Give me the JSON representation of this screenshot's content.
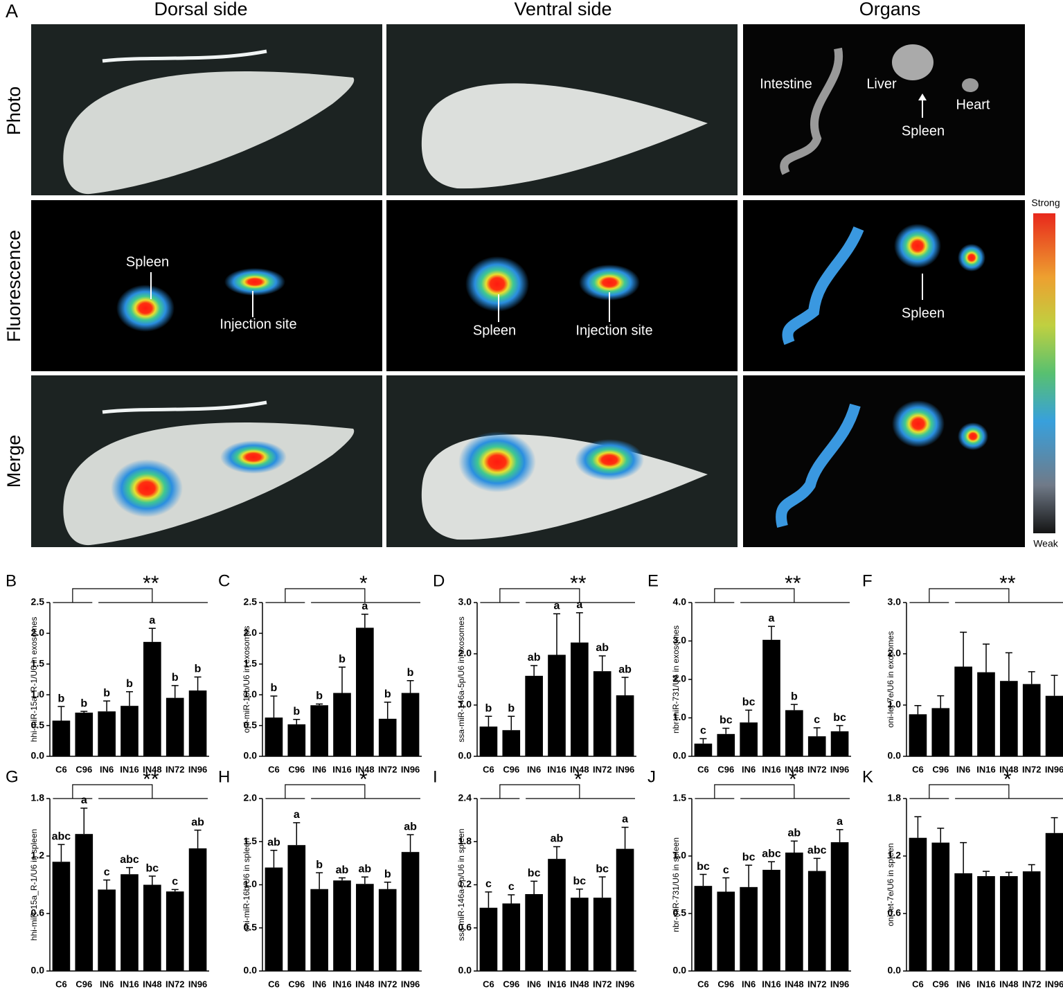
{
  "panel_a": {
    "label": "A",
    "columns": [
      "Dorsal side",
      "Ventral side",
      "Organs"
    ],
    "rows": [
      "Photo",
      "Fluorescence",
      "Merge"
    ],
    "annotations": [
      "Intestine",
      "Liver",
      "Heart",
      "Spleen",
      "Spleen",
      "Injection site",
      "Spleen",
      "Injection site",
      "Spleen"
    ],
    "colorbar": {
      "top": "Strong",
      "bottom": "Weak"
    }
  },
  "chart_data": [
    {
      "type": "bar",
      "panel": "B",
      "ylabel": "hhi-miR-15a_R-1/U6 in exosomes",
      "significance": "**",
      "color": "#000000",
      "categories": [
        "C6",
        "C96",
        "IN6",
        "IN16",
        "IN48",
        "IN72",
        "IN96"
      ],
      "values": [
        0.58,
        0.71,
        0.73,
        0.82,
        1.86,
        0.95,
        1.07
      ],
      "errors": [
        0.23,
        0.02,
        0.17,
        0.23,
        0.22,
        0.2,
        0.22
      ],
      "letters": [
        "b",
        "b",
        "b",
        "b",
        "a",
        "b",
        "b"
      ],
      "ylim": [
        0,
        2.5
      ],
      "yticks": [
        {
          "value": 0,
          "label": "0.0"
        },
        0.5,
        {
          "value": 1,
          "label": "1.0"
        },
        1.5,
        {
          "value": 2,
          "label": "2.0"
        },
        2.5
      ]
    },
    {
      "type": "bar",
      "panel": "C",
      "ylabel": "oni-miR-16b/U6 in exosomes",
      "significance": "*",
      "color": "#000000",
      "categories": [
        "C6",
        "C96",
        "IN6",
        "IN16",
        "IN48",
        "IN72",
        "IN96"
      ],
      "values": [
        0.63,
        0.52,
        0.83,
        1.03,
        2.09,
        0.61,
        1.03
      ],
      "errors": [
        0.35,
        0.08,
        0.02,
        0.42,
        0.22,
        0.27,
        0.2
      ],
      "letters": [
        "b",
        "b",
        "b",
        "b",
        "a",
        "b",
        "b"
      ],
      "ylim": [
        0,
        2.5
      ],
      "yticks": [
        {
          "value": 0,
          "label": "0.0"
        },
        0.5,
        {
          "value": 1,
          "label": "1.0"
        },
        1.5,
        {
          "value": 2,
          "label": "2.0"
        },
        2.5
      ]
    },
    {
      "type": "bar",
      "panel": "D",
      "ylabel": "ssa-miR-146a-5p/U6 in exosomes",
      "significance": "**",
      "color": "#000000",
      "categories": [
        "C6",
        "C96",
        "IN6",
        "IN16",
        "IN48",
        "IN72",
        "IN96"
      ],
      "values": [
        0.58,
        0.51,
        1.57,
        1.98,
        2.22,
        1.66,
        1.19
      ],
      "errors": [
        0.2,
        0.27,
        0.2,
        0.8,
        0.58,
        0.3,
        0.35
      ],
      "letters": [
        "b",
        "b",
        "ab",
        "a",
        "a",
        "ab",
        "ab"
      ],
      "ylim": [
        0,
        3
      ],
      "yticks": [
        {
          "value": 0,
          "label": "0.0"
        },
        {
          "value": 1,
          "label": "1.0"
        },
        {
          "value": 2,
          "label": "2.0"
        },
        {
          "value": 3,
          "label": "3.0"
        }
      ]
    },
    {
      "type": "bar",
      "panel": "E",
      "ylabel": "nbr-miR-731/U6 in exosomes",
      "significance": "**",
      "color": "#000000",
      "categories": [
        "C6",
        "C96",
        "IN6",
        "IN16",
        "IN48",
        "IN72",
        "IN96"
      ],
      "values": [
        0.33,
        0.58,
        0.88,
        3.03,
        1.2,
        0.52,
        0.65
      ],
      "errors": [
        0.13,
        0.15,
        0.32,
        0.35,
        0.15,
        0.22,
        0.15
      ],
      "letters": [
        "c",
        "bc",
        "bc",
        "a",
        "b",
        "c",
        "bc"
      ],
      "ylim": [
        0,
        4
      ],
      "yticks": [
        {
          "value": 0,
          "label": "0.0"
        },
        {
          "value": 1,
          "label": "1.0"
        },
        {
          "value": 2,
          "label": "2.0"
        },
        {
          "value": 3,
          "label": "3.0"
        },
        {
          "value": 4,
          "label": "4.0"
        }
      ]
    },
    {
      "type": "bar",
      "panel": "F",
      "ylabel": "oni-let-7e/U6 in exosomes",
      "significance": "**",
      "color": "#000000",
      "categories": [
        "C6",
        "C96",
        "IN6",
        "IN16",
        "IN48",
        "IN72",
        "IN96"
      ],
      "values": [
        0.82,
        0.94,
        1.75,
        1.64,
        1.47,
        1.41,
        1.18
      ],
      "errors": [
        0.17,
        0.24,
        0.67,
        0.55,
        0.55,
        0.24,
        0.4
      ],
      "ylim": [
        0,
        3
      ],
      "yticks": [
        {
          "value": 0,
          "label": "0.0"
        },
        {
          "value": 1,
          "label": "1.0"
        },
        {
          "value": 2,
          "label": "2.0"
        },
        {
          "value": 3,
          "label": "3.0"
        }
      ]
    },
    {
      "type": "bar",
      "panel": "G",
      "ylabel": "hhi-miR-15a_R-1/U6 in spleen",
      "significance": "**",
      "color": "#000000",
      "categories": [
        "C6",
        "C96",
        "IN6",
        "IN16",
        "IN48",
        "IN72",
        "IN96"
      ],
      "values": [
        1.14,
        1.43,
        0.85,
        1.01,
        0.9,
        0.83,
        1.28
      ],
      "errors": [
        0.18,
        0.27,
        0.1,
        0.07,
        0.09,
        0.02,
        0.19
      ],
      "letters": [
        "abc",
        "a",
        "c",
        "abc",
        "bc",
        "c",
        "ab"
      ],
      "ylim": [
        0,
        1.8
      ],
      "yticks": [
        {
          "value": 0,
          "label": "0.0"
        },
        0.6,
        1.2,
        1.8
      ]
    },
    {
      "type": "bar",
      "panel": "H",
      "ylabel": "oni-miR-16b/U6 in spleen",
      "significance": "*",
      "color": "#000000",
      "categories": [
        "C6",
        "C96",
        "IN6",
        "IN16",
        "IN48",
        "IN72",
        "IN96"
      ],
      "values": [
        1.2,
        1.46,
        0.95,
        1.05,
        1.01,
        0.95,
        1.38
      ],
      "errors": [
        0.2,
        0.26,
        0.19,
        0.03,
        0.08,
        0.08,
        0.2
      ],
      "letters": [
        "ab",
        "a",
        "b",
        "ab",
        "ab",
        "b",
        "ab"
      ],
      "ylim": [
        0,
        2
      ],
      "yticks": [
        {
          "value": 0,
          "label": "0.0"
        },
        0.5,
        {
          "value": 1,
          "label": "1.0"
        },
        1.5,
        {
          "value": 2,
          "label": "2.0"
        }
      ]
    },
    {
      "type": "bar",
      "panel": "I",
      "ylabel": "ssa-miR-146a-5p/U6 in spleen",
      "significance": "*",
      "color": "#000000",
      "categories": [
        "C6",
        "C96",
        "IN6",
        "IN16",
        "IN48",
        "IN72",
        "IN96"
      ],
      "values": [
        0.88,
        0.94,
        1.07,
        1.56,
        1.02,
        1.02,
        1.7
      ],
      "errors": [
        0.22,
        0.12,
        0.18,
        0.17,
        0.12,
        0.29,
        0.3
      ],
      "letters": [
        "c",
        "c",
        "bc",
        "ab",
        "bc",
        "bc",
        "a"
      ],
      "ylim": [
        0,
        2.4
      ],
      "yticks": [
        {
          "value": 0,
          "label": "0.0"
        },
        0.6,
        1.2,
        1.8,
        2.4
      ]
    },
    {
      "type": "bar",
      "panel": "J",
      "ylabel": "nbr-miR-731/U6 in spleen",
      "significance": "*",
      "color": "#000000",
      "categories": [
        "C6",
        "C96",
        "IN6",
        "IN16",
        "IN48",
        "IN72",
        "IN96"
      ],
      "values": [
        0.74,
        0.69,
        0.73,
        0.88,
        1.03,
        0.87,
        1.12
      ],
      "errors": [
        0.1,
        0.12,
        0.19,
        0.07,
        0.1,
        0.11,
        0.11
      ],
      "letters": [
        "bc",
        "c",
        "bc",
        "abc",
        "ab",
        "abc",
        "a"
      ],
      "ylim": [
        0,
        1.5
      ],
      "yticks": [
        {
          "value": 0,
          "label": "0.0"
        },
        0.5,
        {
          "value": 1,
          "label": "1.0"
        },
        1.5
      ]
    },
    {
      "type": "bar",
      "panel": "K",
      "ylabel": "oni-let-7e/U6 in spleen",
      "significance": "*",
      "color": "#000000",
      "categories": [
        "C6",
        "C96",
        "IN6",
        "IN16",
        "IN48",
        "IN72",
        "IN96"
      ],
      "values": [
        1.39,
        1.34,
        1.02,
        0.99,
        0.99,
        1.04,
        1.44
      ],
      "errors": [
        0.22,
        0.15,
        0.32,
        0.05,
        0.04,
        0.07,
        0.16
      ],
      "ylim": [
        0,
        1.8
      ],
      "yticks": [
        {
          "value": 0,
          "label": "0.0"
        },
        0.6,
        1.2,
        1.8
      ]
    }
  ]
}
